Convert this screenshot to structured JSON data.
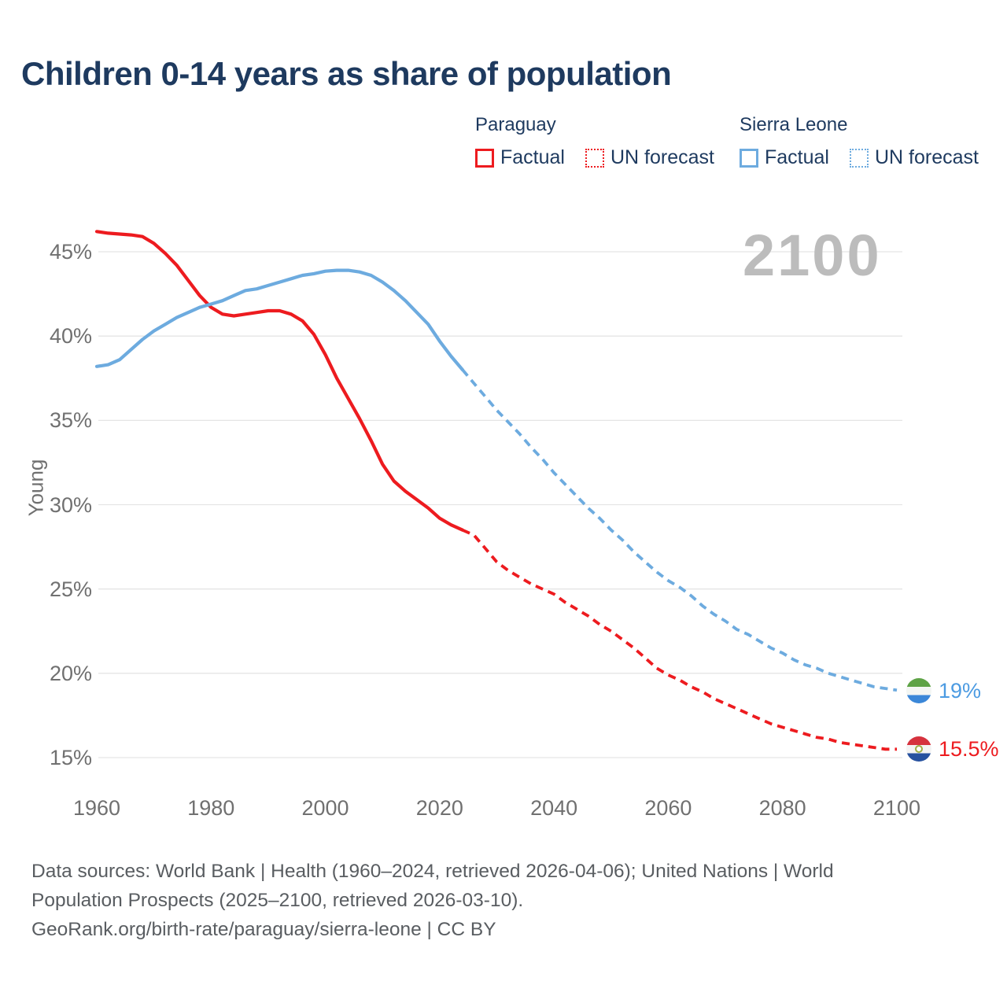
{
  "title": "Children 0-14 years as share of population",
  "legend": {
    "groups": [
      {
        "name": "Paraguay",
        "color": "#ed1b1f",
        "items": [
          {
            "label": "Factual",
            "style": "solid"
          },
          {
            "label": "UN forecast",
            "style": "dotted"
          }
        ]
      },
      {
        "name": "Sierra Leone",
        "color": "#6dabdf",
        "items": [
          {
            "label": "Factual",
            "style": "solid"
          },
          {
            "label": "UN forecast",
            "style": "dotted"
          }
        ]
      }
    ]
  },
  "watermark": "2100",
  "chart_data": {
    "type": "line",
    "title": "Children 0-14 years as share of population",
    "xlabel": "",
    "ylabel": "Young",
    "unit": "%",
    "grid": "horizontal",
    "legend_position": "top-right",
    "xlim": [
      1960,
      2100
    ],
    "ylim": [
      13.5,
      47
    ],
    "x_ticks": [
      1960,
      1980,
      2000,
      2020,
      2040,
      2060,
      2080,
      2100
    ],
    "y_ticks": [
      15,
      20,
      25,
      30,
      35,
      40,
      45
    ],
    "series": [
      {
        "id": "paraguay-factual",
        "name": "Paraguay Factual",
        "color": "#ed1b1f",
        "style": "solid",
        "points": [
          [
            1960,
            46.2
          ],
          [
            1962,
            46.1
          ],
          [
            1964,
            46.05
          ],
          [
            1966,
            46.0
          ],
          [
            1968,
            45.9
          ],
          [
            1970,
            45.5
          ],
          [
            1972,
            44.9
          ],
          [
            1974,
            44.2
          ],
          [
            1976,
            43.3
          ],
          [
            1978,
            42.4
          ],
          [
            1980,
            41.7
          ],
          [
            1982,
            41.3
          ],
          [
            1984,
            41.2
          ],
          [
            1986,
            41.3
          ],
          [
            1988,
            41.4
          ],
          [
            1990,
            41.5
          ],
          [
            1992,
            41.5
          ],
          [
            1994,
            41.3
          ],
          [
            1996,
            40.9
          ],
          [
            1998,
            40.1
          ],
          [
            2000,
            38.9
          ],
          [
            2002,
            37.5
          ],
          [
            2004,
            36.3
          ],
          [
            2006,
            35.1
          ],
          [
            2008,
            33.8
          ],
          [
            2010,
            32.4
          ],
          [
            2012,
            31.4
          ],
          [
            2014,
            30.8
          ],
          [
            2016,
            30.3
          ],
          [
            2018,
            29.8
          ],
          [
            2020,
            29.2
          ],
          [
            2022,
            28.8
          ],
          [
            2024,
            28.5
          ]
        ]
      },
      {
        "id": "paraguay-forecast",
        "name": "Paraguay UN forecast",
        "color": "#ed1b1f",
        "style": "dashed",
        "points": [
          [
            2024,
            28.5
          ],
          [
            2026,
            28.2
          ],
          [
            2028,
            27.4
          ],
          [
            2030,
            26.6
          ],
          [
            2032,
            26.1
          ],
          [
            2034,
            25.7
          ],
          [
            2036,
            25.3
          ],
          [
            2038,
            25.0
          ],
          [
            2040,
            24.7
          ],
          [
            2042,
            24.2
          ],
          [
            2044,
            23.8
          ],
          [
            2046,
            23.4
          ],
          [
            2048,
            22.9
          ],
          [
            2050,
            22.5
          ],
          [
            2052,
            22.0
          ],
          [
            2054,
            21.5
          ],
          [
            2056,
            20.9
          ],
          [
            2058,
            20.3
          ],
          [
            2060,
            19.9
          ],
          [
            2062,
            19.6
          ],
          [
            2064,
            19.2
          ],
          [
            2066,
            18.9
          ],
          [
            2068,
            18.5
          ],
          [
            2070,
            18.2
          ],
          [
            2072,
            17.9
          ],
          [
            2074,
            17.6
          ],
          [
            2076,
            17.3
          ],
          [
            2078,
            17.0
          ],
          [
            2080,
            16.8
          ],
          [
            2082,
            16.6
          ],
          [
            2084,
            16.4
          ],
          [
            2086,
            16.2
          ],
          [
            2088,
            16.1
          ],
          [
            2090,
            15.9
          ],
          [
            2092,
            15.8
          ],
          [
            2094,
            15.7
          ],
          [
            2096,
            15.6
          ],
          [
            2098,
            15.5
          ],
          [
            2100,
            15.5
          ]
        ]
      },
      {
        "id": "sierra-leone-factual",
        "name": "Sierra Leone Factual",
        "color": "#6dabdf",
        "style": "solid",
        "points": [
          [
            1960,
            38.2
          ],
          [
            1962,
            38.3
          ],
          [
            1964,
            38.6
          ],
          [
            1966,
            39.2
          ],
          [
            1968,
            39.8
          ],
          [
            1970,
            40.3
          ],
          [
            1972,
            40.7
          ],
          [
            1974,
            41.1
          ],
          [
            1976,
            41.4
          ],
          [
            1978,
            41.7
          ],
          [
            1980,
            41.9
          ],
          [
            1982,
            42.1
          ],
          [
            1984,
            42.4
          ],
          [
            1986,
            42.7
          ],
          [
            1988,
            42.8
          ],
          [
            1990,
            43.0
          ],
          [
            1992,
            43.2
          ],
          [
            1994,
            43.4
          ],
          [
            1996,
            43.6
          ],
          [
            1998,
            43.7
          ],
          [
            2000,
            43.85
          ],
          [
            2002,
            43.9
          ],
          [
            2004,
            43.9
          ],
          [
            2006,
            43.8
          ],
          [
            2008,
            43.6
          ],
          [
            2010,
            43.2
          ],
          [
            2012,
            42.7
          ],
          [
            2014,
            42.1
          ],
          [
            2016,
            41.4
          ],
          [
            2018,
            40.7
          ],
          [
            2020,
            39.7
          ],
          [
            2022,
            38.8
          ],
          [
            2024,
            38.0
          ]
        ]
      },
      {
        "id": "sierra-leone-forecast",
        "name": "Sierra Leone UN forecast",
        "color": "#6dabdf",
        "style": "dashed",
        "points": [
          [
            2024,
            38.0
          ],
          [
            2026,
            37.2
          ],
          [
            2028,
            36.4
          ],
          [
            2030,
            35.6
          ],
          [
            2032,
            34.9
          ],
          [
            2034,
            34.2
          ],
          [
            2036,
            33.4
          ],
          [
            2038,
            32.7
          ],
          [
            2040,
            31.9
          ],
          [
            2042,
            31.2
          ],
          [
            2044,
            30.5
          ],
          [
            2046,
            29.8
          ],
          [
            2048,
            29.2
          ],
          [
            2050,
            28.5
          ],
          [
            2052,
            27.9
          ],
          [
            2054,
            27.2
          ],
          [
            2056,
            26.6
          ],
          [
            2058,
            26.0
          ],
          [
            2060,
            25.5
          ],
          [
            2062,
            25.1
          ],
          [
            2064,
            24.6
          ],
          [
            2066,
            24.0
          ],
          [
            2068,
            23.5
          ],
          [
            2070,
            23.1
          ],
          [
            2072,
            22.6
          ],
          [
            2074,
            22.3
          ],
          [
            2076,
            21.9
          ],
          [
            2078,
            21.5
          ],
          [
            2080,
            21.2
          ],
          [
            2082,
            20.8
          ],
          [
            2084,
            20.5
          ],
          [
            2086,
            20.3
          ],
          [
            2088,
            20.0
          ],
          [
            2090,
            19.8
          ],
          [
            2092,
            19.6
          ],
          [
            2094,
            19.4
          ],
          [
            2096,
            19.2
          ],
          [
            2098,
            19.1
          ],
          [
            2100,
            19.0
          ]
        ]
      }
    ]
  },
  "end_labels": [
    {
      "country": "Sierra Leone",
      "value": "19%",
      "color": "#4c9be2",
      "flag": "sierra-leone-flag"
    },
    {
      "country": "Paraguay",
      "value": "15.5%",
      "color": "#ed1b1f",
      "flag": "paraguay-flag"
    }
  ],
  "footer": {
    "line1": "Data sources: World Bank | Health (1960–2024, retrieved 2026-04-06); United Nations | World",
    "line2": "Population Prospects (2025–2100, retrieved 2026-03-10).",
    "line3": "GeoRank.org/birth-rate/paraguay/sierra-leone | CC BY"
  },
  "colors": {
    "title_text": "#1e3a5f",
    "axis_text": "#707070",
    "grid": "#e5e5e5",
    "watermark": "#bcbcbc",
    "footer_text": "#595d61"
  }
}
